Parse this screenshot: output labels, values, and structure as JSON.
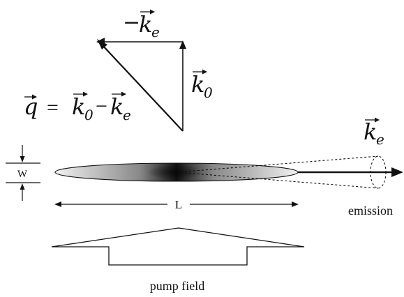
{
  "vectors": {
    "minus_ke": {
      "sign": "−",
      "base": "k",
      "sub": "e"
    },
    "k0": {
      "base": "k",
      "sub": "0"
    },
    "q_equation": {
      "lhs": "q",
      "equals": "=",
      "k0_base": "k",
      "k0_sub": "0",
      "minus": "−",
      "ke_base": "k",
      "ke_sub": "e"
    },
    "ke": {
      "base": "k",
      "sub": "e"
    }
  },
  "labels": {
    "width": "W",
    "length": "L",
    "emission": "emission",
    "pump_field": "pump field"
  },
  "colors": {
    "line": "#111111",
    "gain_core": "#111111",
    "gain_edge": "#eeeeee"
  }
}
